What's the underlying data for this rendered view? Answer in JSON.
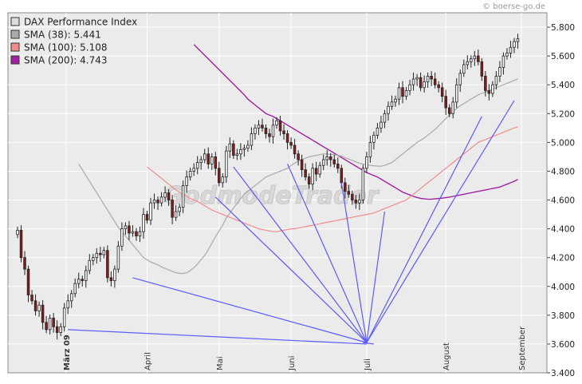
{
  "source": "© boerse-go.de",
  "watermark": "GodmodeTrader",
  "colors": {
    "background": "#ffffff",
    "plot_background": "#ebebeb",
    "grid": "#ffffff",
    "candle_up": "#ffffff",
    "candle_down": "#8b1a1a",
    "candle_outline": "#222222",
    "sma38": "#aaaaaa",
    "sma100": "#f08c8c",
    "sma200": "#a020a0",
    "fan_lines": "#5a5aff"
  },
  "chart_data": {
    "type": "candlestick",
    "title": "",
    "legend_position": "top-left",
    "grid": true,
    "y_axis": {
      "side": "right",
      "range": [
        3400,
        5900
      ],
      "ticks": [
        3400,
        3600,
        3800,
        4000,
        4200,
        4400,
        4600,
        4800,
        5000,
        5200,
        5400,
        5600,
        5800
      ],
      "tick_labels": [
        "3.400",
        "3.600",
        "3.800",
        "4.000",
        "4.200",
        "4.400",
        "4.600",
        "4.800",
        "5.000",
        "5.200",
        "5.400",
        "5.600",
        "5.800"
      ]
    },
    "x_axis": {
      "unit": "trading day",
      "range": [
        0,
        140
      ],
      "month_ticks": [
        {
          "label": "März 09",
          "x": 13.5,
          "bold": true
        },
        {
          "label": "April",
          "x": 36
        },
        {
          "label": "Mai",
          "x": 56
        },
        {
          "label": "Juni",
          "x": 76
        },
        {
          "label": "Juli",
          "x": 97
        },
        {
          "label": "August",
          "x": 119
        },
        {
          "label": "September",
          "x": 140
        }
      ]
    },
    "legend": [
      {
        "label": "DAX Performance Index",
        "color": "#dddddd"
      },
      {
        "label": "SMA (38): 5.441",
        "color": "#aaaaaa"
      },
      {
        "label": "SMA (100): 5.108",
        "color": "#f08c8c"
      },
      {
        "label": "SMA (200): 4.743",
        "color": "#a020a0"
      }
    ],
    "closes": [
      4390,
      4200,
      4120,
      3940,
      3900,
      3830,
      3870,
      3750,
      3700,
      3780,
      3720,
      3680,
      3720,
      3850,
      3900,
      3950,
      4020,
      4050,
      4040,
      4110,
      4180,
      4200,
      4230,
      4220,
      4250,
      4060,
      4040,
      4120,
      4280,
      4400,
      4420,
      4370,
      4380,
      4350,
      4380,
      4500,
      4460,
      4580,
      4600,
      4580,
      4620,
      4650,
      4600,
      4480,
      4520,
      4550,
      4700,
      4760,
      4800,
      4820,
      4860,
      4880,
      4920,
      4850,
      4900,
      4820,
      4720,
      4760,
      4940,
      4990,
      4910,
      4920,
      4950,
      4960,
      4980,
      5060,
      5100,
      5120,
      5100,
      5060,
      5040,
      5120,
      5150,
      5080,
      5060,
      5000,
      4980,
      4920,
      4880,
      4810,
      4760,
      4710,
      4820,
      4780,
      4840,
      4880,
      4900,
      4880,
      4850,
      4820,
      4720,
      4660,
      4640,
      4600,
      4580,
      4600,
      4820,
      4900,
      5000,
      5050,
      5100,
      5140,
      5200,
      5250,
      5280,
      5300,
      5380,
      5320,
      5360,
      5400,
      5440,
      5450,
      5380,
      5420,
      5460,
      5440,
      5400,
      5380,
      5320,
      5240,
      5200,
      5280,
      5400,
      5480,
      5540,
      5560,
      5580,
      5600,
      5560,
      5460,
      5360,
      5340,
      5400,
      5460,
      5520,
      5600,
      5620,
      5660,
      5700,
      5720
    ],
    "sma38": [
      4850,
      4810,
      4770,
      4730,
      4690,
      4650,
      4610,
      4570,
      4530,
      4490,
      4450,
      4410,
      4380,
      4350,
      4320,
      4290,
      4260,
      4230,
      4200,
      4185,
      4170,
      4160,
      4150,
      4135,
      4125,
      4115,
      4105,
      4095,
      4090,
      4090,
      4095,
      4110,
      4130,
      4155,
      4185,
      4215,
      4255,
      4300,
      4345,
      4385,
      4425,
      4475,
      4510,
      4545,
      4575,
      4610,
      4640,
      4660,
      4680,
      4700,
      4720,
      4740,
      4760,
      4770,
      4780,
      4790,
      4800,
      4810,
      4820,
      4840,
      4855,
      4870,
      4880,
      4890,
      4900,
      4905,
      4910,
      4915,
      4920,
      4920,
      4918,
      4915,
      4910,
      4905,
      4895,
      4885,
      4875,
      4865,
      4855,
      4850,
      4845,
      4840,
      4838,
      4835,
      4835,
      4840,
      4850,
      4860,
      4880,
      4900,
      4920,
      4940,
      4960,
      4980,
      5000,
      5015,
      5030,
      5050,
      5070,
      5090,
      5115,
      5140,
      5165,
      5190,
      5215,
      5235,
      5255,
      5270,
      5285,
      5300,
      5315,
      5330,
      5340,
      5350,
      5360,
      5370,
      5380,
      5390,
      5400,
      5410,
      5420,
      5430,
      5441
    ],
    "sma100": [
      4830,
      4810,
      4790,
      4770,
      4750,
      4730,
      4710,
      4690,
      4670,
      4655,
      4640,
      4625,
      4610,
      4600,
      4590,
      4575,
      4560,
      4545,
      4530,
      4520,
      4510,
      4500,
      4490,
      4480,
      4470,
      4460,
      4450,
      4440,
      4430,
      4420,
      4410,
      4400,
      4395,
      4390,
      4385,
      4380,
      4380,
      4385,
      4390,
      4395,
      4400,
      4400,
      4405,
      4410,
      4415,
      4420,
      4425,
      4430,
      4435,
      4440,
      4445,
      4450,
      4455,
      4460,
      4465,
      4470,
      4475,
      4480,
      4485,
      4490,
      4495,
      4500,
      4505,
      4510,
      4520,
      4530,
      4540,
      4550,
      4560,
      4570,
      4580,
      4590,
      4600,
      4620,
      4640,
      4660,
      4680,
      4700,
      4720,
      4740,
      4760,
      4780,
      4800,
      4820,
      4840,
      4860,
      4880,
      4900,
      4920,
      4940,
      4960,
      4980,
      5000,
      5010,
      5020,
      5030,
      5040,
      5050,
      5060,
      5070,
      5080,
      5090,
      5100,
      5108
    ],
    "sma200": [
      5680,
      5655,
      5630,
      5605,
      5580,
      5555,
      5530,
      5505,
      5480,
      5455,
      5430,
      5405,
      5380,
      5355,
      5330,
      5300,
      5280,
      5260,
      5240,
      5220,
      5200,
      5190,
      5180,
      5165,
      5150,
      5135,
      5120,
      5105,
      5090,
      5075,
      5060,
      5045,
      5030,
      5015,
      5000,
      4985,
      4970,
      4955,
      4940,
      4925,
      4910,
      4895,
      4880,
      4865,
      4850,
      4835,
      4820,
      4805,
      4790,
      4780,
      4770,
      4760,
      4745,
      4730,
      4715,
      4700,
      4685,
      4670,
      4655,
      4645,
      4635,
      4625,
      4618,
      4612,
      4608,
      4605,
      4605,
      4608,
      4610,
      4613,
      4616,
      4620,
      4625,
      4630,
      4635,
      4640,
      4645,
      4650,
      4655,
      4660,
      4665,
      4670,
      4675,
      4680,
      4685,
      4690,
      4700,
      4710,
      4720,
      4730,
      4743
    ],
    "fan_lines": [
      {
        "from": [
          14,
          3700
        ],
        "to": [
          97,
          3600
        ]
      },
      {
        "from": [
          32,
          4060
        ],
        "to": [
          97,
          3610
        ]
      },
      {
        "from": [
          55,
          4620
        ],
        "to": [
          97,
          3610
        ]
      },
      {
        "from": [
          60,
          4830
        ],
        "to": [
          97,
          3610
        ]
      },
      {
        "from": [
          75,
          4850
        ],
        "to": [
          97,
          3610
        ]
      },
      {
        "from": [
          90,
          4720
        ],
        "to": [
          97,
          3610
        ]
      },
      {
        "from": [
          102,
          4520
        ],
        "to": [
          97,
          3610
        ]
      },
      {
        "from": [
          129,
          5180
        ],
        "to": [
          97,
          3610
        ]
      },
      {
        "from": [
          138,
          5290
        ],
        "to": [
          97,
          3610
        ]
      },
      {
        "from": [
          96,
          3610
        ],
        "to": [
          99,
          3600
        ]
      }
    ]
  }
}
